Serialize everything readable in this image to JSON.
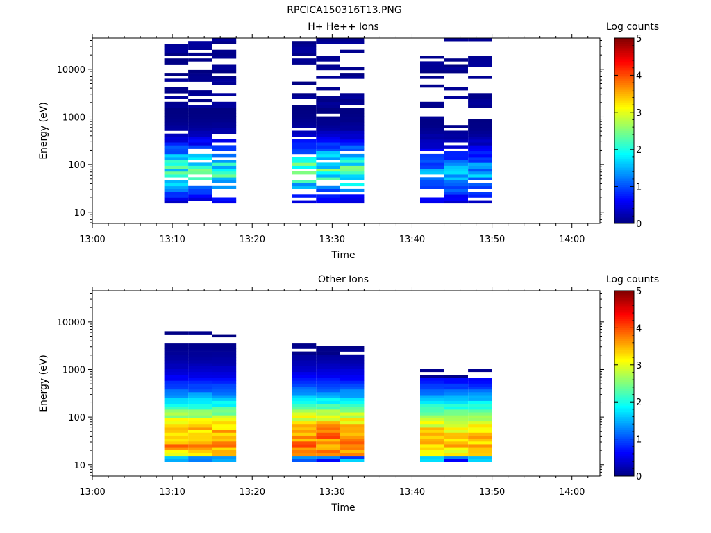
{
  "figure_title": "RPCICA150316T13.PNG",
  "chart_data": [
    {
      "type": "heatmap",
      "title": "H+ He++ Ions",
      "xlabel": "Time",
      "ylabel": "Energy (eV)",
      "x_ticks": [
        "13:00",
        "13:10",
        "13:20",
        "13:30",
        "13:40",
        "13:50",
        "14:00"
      ],
      "x_range_minutes": [
        0,
        63.5
      ],
      "y_ticks": [
        10,
        100,
        1000,
        10000
      ],
      "y_range": [
        5.8,
        45000
      ],
      "y_scale": "log",
      "colorbar": {
        "label": "Log counts",
        "ticks": [
          0,
          1,
          2,
          3,
          4,
          5
        ],
        "range": [
          0,
          5
        ]
      },
      "scans": [
        {
          "start": "13:09",
          "end": "13:18",
          "dominant_energy_range_eV": [
            15,
            1500
          ],
          "peak_log_counts": 2.3
        },
        {
          "start": "13:25",
          "end": "13:34",
          "dominant_energy_range_eV": [
            15,
            1500
          ],
          "peak_log_counts": 2.5
        },
        {
          "start": "13:41",
          "end": "13:50",
          "dominant_energy_range_eV": [
            15,
            900
          ],
          "peak_log_counts": 1.6
        }
      ]
    },
    {
      "type": "heatmap",
      "title": "Other Ions",
      "xlabel": "Time",
      "ylabel": "Energy (eV)",
      "x_ticks": [
        "13:00",
        "13:10",
        "13:20",
        "13:30",
        "13:40",
        "13:50",
        "14:00"
      ],
      "x_range_minutes": [
        0,
        63.5
      ],
      "y_ticks": [
        10,
        100,
        1000,
        10000
      ],
      "y_range": [
        5.8,
        45000
      ],
      "y_scale": "log",
      "colorbar": {
        "label": "Log counts",
        "ticks": [
          0,
          1,
          2,
          3,
          4,
          5
        ],
        "range": [
          0,
          5
        ]
      },
      "scans": [
        {
          "start": "13:09",
          "end": "13:18",
          "dominant_energy_range_eV": [
            11,
            3500
          ],
          "peak_log_counts": 3.8
        },
        {
          "start": "13:25",
          "end": "13:34",
          "dominant_energy_range_eV": [
            11,
            2100
          ],
          "peak_log_counts": 4.0
        },
        {
          "start": "13:41",
          "end": "13:50",
          "dominant_energy_range_eV": [
            11,
            650
          ],
          "peak_log_counts": 3.6
        }
      ]
    }
  ]
}
